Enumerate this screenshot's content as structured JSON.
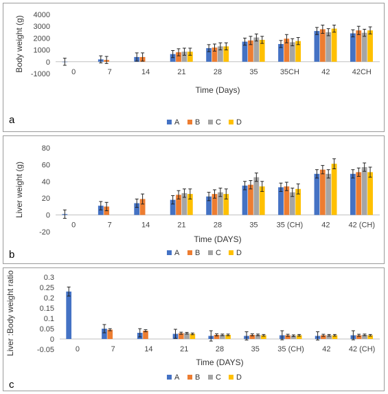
{
  "legend": [
    "A",
    "B",
    "C",
    "D"
  ],
  "colors": [
    "#4472C4",
    "#ED7D31",
    "#A5A5A5",
    "#FFC000"
  ],
  "chart_data": [
    {
      "type": "bar",
      "panel_label": "a",
      "ylabel": "Body weight (g)",
      "xlabel": "Time (Days)",
      "categories": [
        "0",
        "7",
        "14",
        "21",
        "28",
        "35",
        "35CH",
        "42",
        "42CH"
      ],
      "ylim": [
        -1000,
        4000
      ],
      "yticks": [
        -1000,
        0,
        1000,
        2000,
        3000,
        4000
      ],
      "legend_position": "bottom-right",
      "grid": false,
      "series": [
        {
          "name": "A",
          "values": [
            0,
            200,
            400,
            650,
            1150,
            1700,
            1500,
            2600,
            2400
          ],
          "errors": [
            300,
            300,
            350,
            300,
            300,
            300,
            300,
            300,
            300
          ]
        },
        {
          "name": "B",
          "values": [
            null,
            150,
            400,
            800,
            1200,
            1800,
            1950,
            2750,
            2650
          ],
          "errors": [
            null,
            300,
            350,
            300,
            300,
            350,
            350,
            350,
            350
          ]
        },
        {
          "name": "C",
          "values": [
            null,
            null,
            null,
            850,
            1300,
            2050,
            1650,
            2500,
            2450
          ],
          "errors": [
            null,
            null,
            null,
            300,
            300,
            300,
            300,
            300,
            300
          ]
        },
        {
          "name": "D",
          "values": [
            null,
            null,
            null,
            850,
            1300,
            1850,
            1750,
            2800,
            2650
          ],
          "errors": [
            null,
            null,
            null,
            300,
            300,
            300,
            300,
            300,
            300
          ]
        }
      ]
    },
    {
      "type": "bar",
      "panel_label": "b",
      "ylabel": "Liver weight (g)",
      "xlabel": "Time (DAYS)",
      "categories": [
        "0",
        "7",
        "14",
        "21",
        "28",
        "35",
        "35 (CH)",
        "42",
        "42 (CH)"
      ],
      "ylim": [
        -20,
        80
      ],
      "yticks": [
        -20,
        0,
        20,
        40,
        60,
        80
      ],
      "legend_position": "bottom-right",
      "grid": false,
      "series": [
        {
          "name": "A",
          "values": [
            1,
            11,
            14,
            18,
            22,
            35,
            33,
            49,
            49
          ],
          "errors": [
            5,
            5,
            5,
            5,
            5,
            5,
            5,
            5,
            5
          ]
        },
        {
          "name": "B",
          "values": [
            null,
            10,
            19,
            24,
            25,
            36,
            34,
            54,
            51
          ],
          "errors": [
            null,
            5,
            6,
            5,
            5,
            5,
            5,
            5,
            5
          ]
        },
        {
          "name": "C",
          "values": [
            null,
            null,
            null,
            26,
            27,
            45,
            27,
            49,
            57
          ],
          "errors": [
            null,
            null,
            null,
            5,
            5,
            5,
            5,
            5,
            5
          ]
        },
        {
          "name": "D",
          "values": [
            null,
            null,
            null,
            25,
            25,
            34,
            31,
            61,
            51
          ],
          "errors": [
            null,
            null,
            null,
            6,
            6,
            6,
            6,
            6,
            6
          ]
        }
      ]
    },
    {
      "type": "bar",
      "panel_label": "c",
      "ylabel": "Liver :Body weight ratio",
      "xlabel": "Time (DAYS)",
      "categories": [
        "0",
        "7",
        "14",
        "21",
        "28",
        "35",
        "35 (CH)",
        "42",
        "42 (CH)"
      ],
      "ylim": [
        -0.05,
        0.3
      ],
      "yticks": [
        -0.05,
        0,
        0.05,
        0.1,
        0.15,
        0.2,
        0.25,
        0.3
      ],
      "ytick_labels": [
        "-0.05",
        "0",
        "0.05",
        "0.1",
        "0.15",
        "0.2",
        "0.25",
        "0.3"
      ],
      "legend_position": "bottom-right",
      "grid": false,
      "series": [
        {
          "name": "A",
          "values": [
            0.23,
            0.05,
            0.03,
            0.025,
            0.015,
            0.015,
            0.018,
            0.015,
            0.018
          ],
          "errors": [
            0.022,
            0.02,
            0.02,
            0.022,
            0.025,
            0.02,
            0.022,
            0.02,
            0.022
          ]
        },
        {
          "name": "B",
          "values": [
            null,
            0.045,
            0.04,
            0.028,
            0.02,
            0.02,
            0.018,
            0.018,
            0.018
          ],
          "errors": [
            null,
            0.005,
            0.005,
            0.005,
            0.005,
            0.005,
            0.005,
            0.005,
            0.005
          ]
        },
        {
          "name": "C",
          "values": [
            null,
            null,
            null,
            0.028,
            0.02,
            0.02,
            0.016,
            0.018,
            0.02
          ],
          "errors": [
            null,
            null,
            null,
            0.004,
            0.004,
            0.004,
            0.004,
            0.004,
            0.004
          ]
        },
        {
          "name": "D",
          "values": [
            null,
            null,
            null,
            0.025,
            0.02,
            0.018,
            0.018,
            0.018,
            0.018
          ],
          "errors": [
            null,
            null,
            null,
            0.004,
            0.004,
            0.004,
            0.004,
            0.004,
            0.004
          ]
        }
      ]
    }
  ]
}
